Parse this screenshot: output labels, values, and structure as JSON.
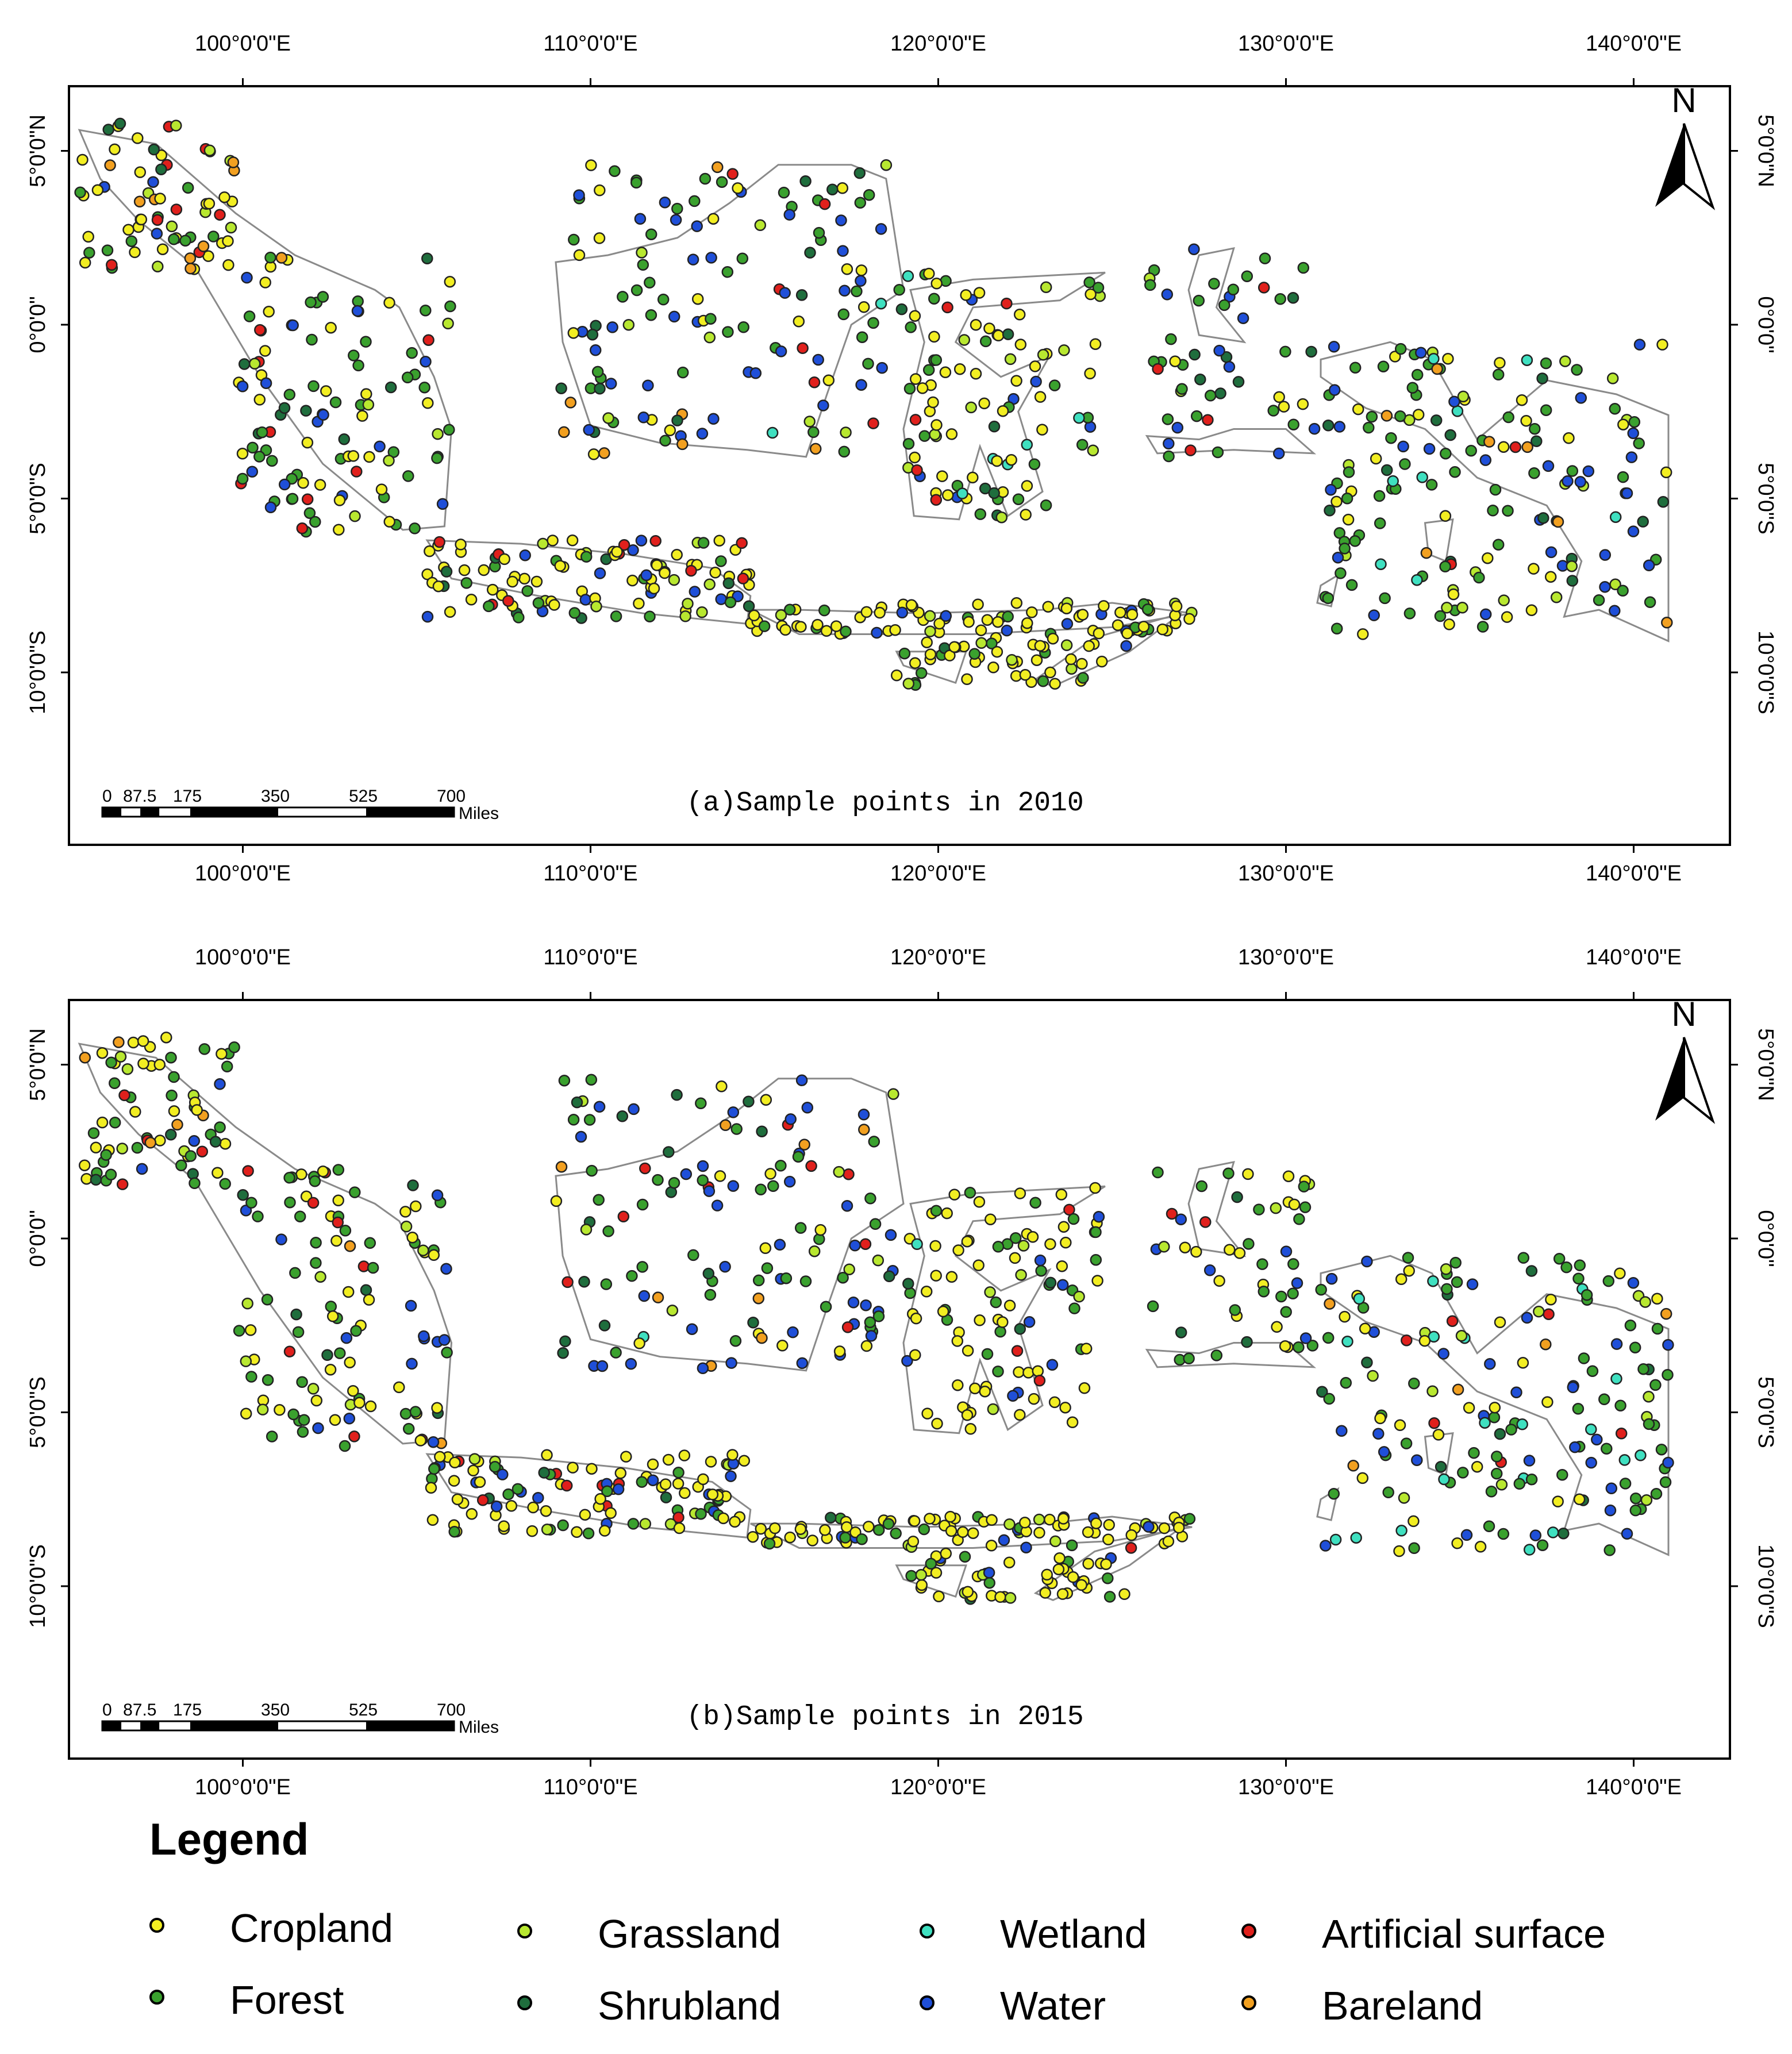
{
  "panels": [
    {
      "id": "a",
      "caption": "(a)Sample points in 2010",
      "north_label": "N",
      "top_ticks": [
        "100°0'0\"E",
        "110°0'0\"E",
        "120°0'0\"E",
        "130°0'0\"E",
        "140°0'0\"E"
      ],
      "bottom_ticks": [
        "100°0'0\"E",
        "110°0'0\"E",
        "120°0'0\"E",
        "130°0'0\"E",
        "140°0'0\"E"
      ],
      "left_ticks": [
        "5°0'0\"N",
        "0°0'0\"",
        "5°0'0\"S",
        "10°0'0\"S"
      ],
      "right_ticks": [
        "5°0'0\"N",
        "0°0'0\"",
        "5°0'0\"S",
        "10°0'0\"S"
      ],
      "scale_labels": [
        "0",
        "87.5",
        "175",
        "350",
        "525",
        "700"
      ],
      "scale_unit": "Miles"
    },
    {
      "id": "b",
      "caption": "(b)Sample points in 2015",
      "north_label": "N",
      "top_ticks": [
        "100°0'0\"E",
        "110°0'0\"E",
        "120°0'0\"E",
        "130°0'0\"E",
        "140°0'0\"E"
      ],
      "bottom_ticks": [
        "100°0'0\"E",
        "110°0'0\"E",
        "120°0'0\"E",
        "130°0'0\"E",
        "140°0'0\"E"
      ],
      "left_ticks": [
        "5°0'0\"N",
        "0°0'0\"",
        "5°0'0\"S",
        "10°0'0\"S"
      ],
      "right_ticks": [
        "5°0'0\"N",
        "0°0'0\"",
        "5°0'0\"S",
        "10°0'0\"S"
      ],
      "scale_labels": [
        "0",
        "87.5",
        "175",
        "350",
        "525",
        "700"
      ],
      "scale_unit": "Miles"
    }
  ],
  "legend": {
    "title": "Legend",
    "items": [
      {
        "label": "Cropland",
        "color": "#f2ee22"
      },
      {
        "label": "Forest",
        "color": "#3aa12e"
      },
      {
        "label": "Grassland",
        "color": "#b8e830"
      },
      {
        "label": "Shrubland",
        "color": "#1f6e3d"
      },
      {
        "label": "Wetland",
        "color": "#3fe0c0"
      },
      {
        "label": "Water",
        "color": "#1f4fd8"
      },
      {
        "label": "Artificial surface",
        "color": "#e0201c"
      },
      {
        "label": "Bareland",
        "color": "#f2a020"
      }
    ]
  }
}
